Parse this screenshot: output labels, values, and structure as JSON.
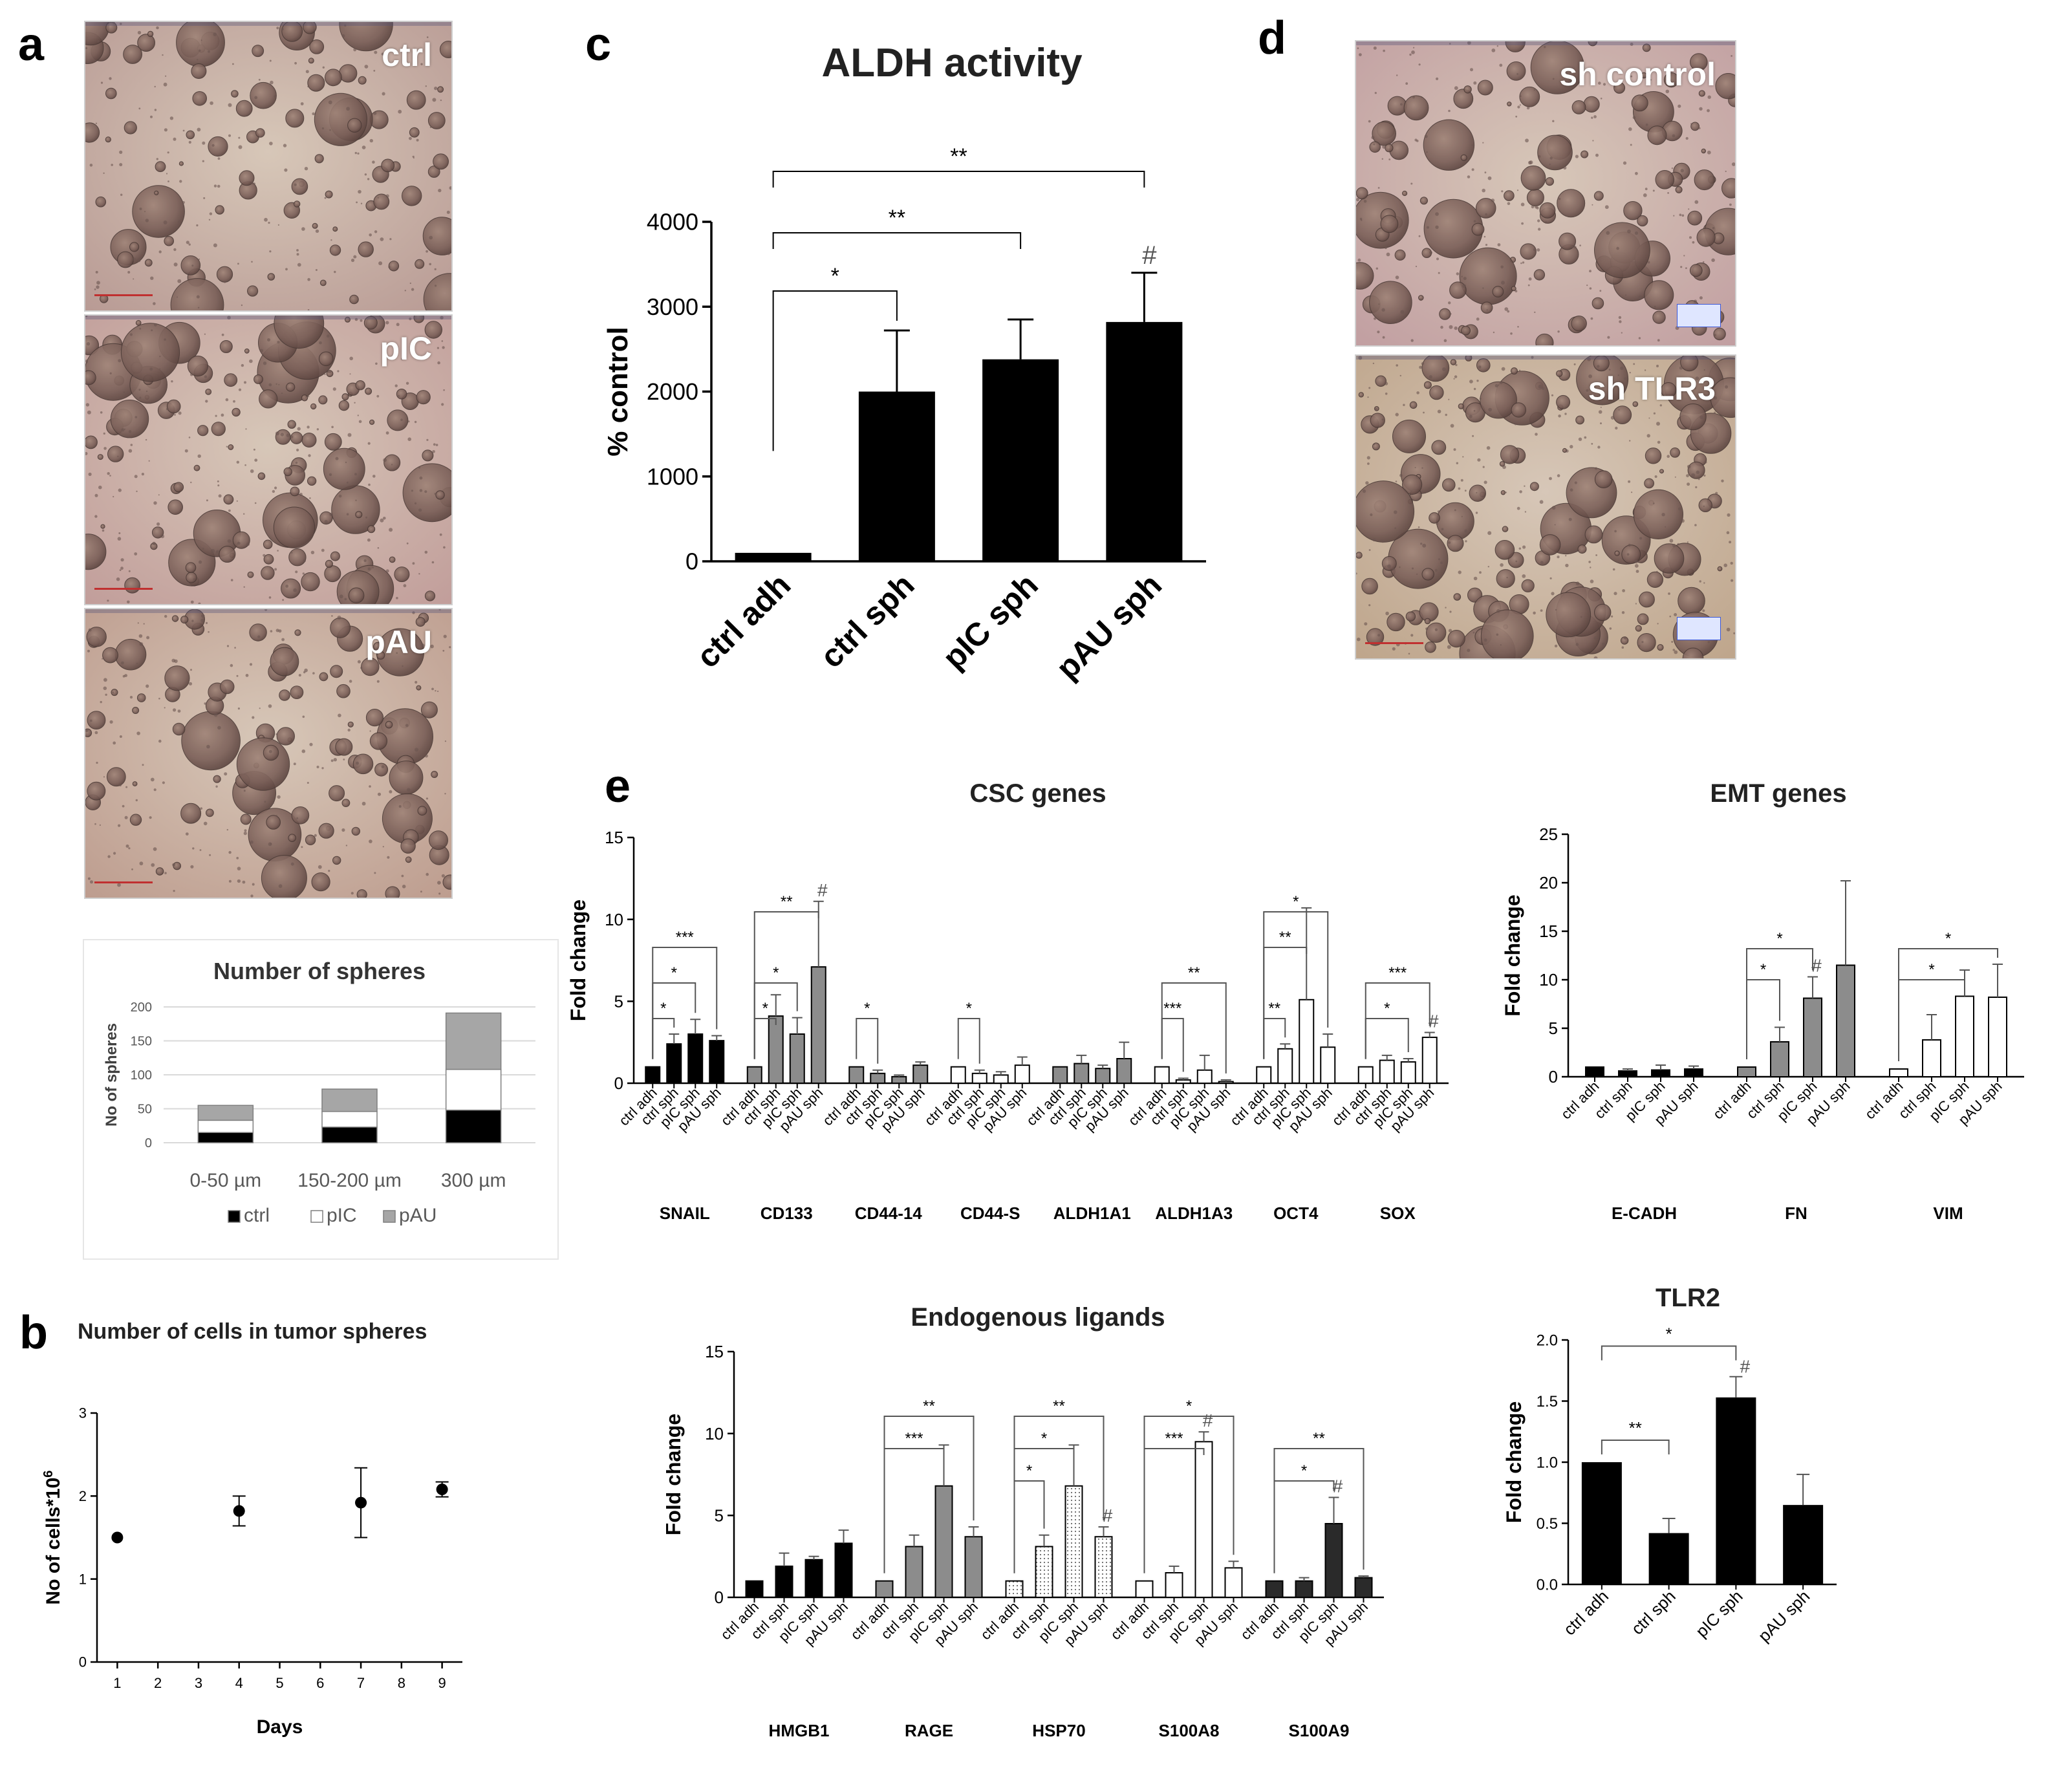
{
  "panels": {
    "a": "a",
    "b": "b",
    "c": "c",
    "d": "d",
    "e": "e"
  },
  "microscopy": {
    "a": [
      {
        "label": "ctrl",
        "tint": "#b89a94"
      },
      {
        "label": "pIC",
        "tint": "#c19d9a"
      },
      {
        "label": "pAU",
        "tint": "#bd9c8e"
      }
    ],
    "d": [
      {
        "label": "sh control",
        "tint": "#c19ea1"
      },
      {
        "label": "sh TLR3",
        "tint": "#bea58b"
      }
    ]
  },
  "colors": {
    "black": "#000000",
    "gray": "#8c8c8c",
    "white": "#ffffff",
    "excel_gray": "#9e9e9e",
    "axis": "#000000"
  },
  "chart_data": [
    {
      "id": "spheres",
      "type": "bar",
      "stacked": true,
      "title": "Number of spheres",
      "ylabel": "No of spheres",
      "ylim": [
        0,
        200
      ],
      "yticks": [
        "0",
        "50",
        "100",
        "150",
        "200"
      ],
      "categories": [
        "0-50 µm",
        "150-200 µm",
        "300 µm"
      ],
      "legend_position": "bottom",
      "grid": true,
      "series": [
        {
          "name": "ctrl",
          "color": "#000000",
          "values": [
            15,
            23,
            48
          ]
        },
        {
          "name": "pIC",
          "color": "#ffffff",
          "values": [
            18,
            23,
            60
          ]
        },
        {
          "name": "pAU",
          "color": "#a6a6a6",
          "values": [
            22,
            33,
            83
          ]
        }
      ]
    },
    {
      "id": "cells",
      "type": "scatter",
      "title": "Number of cells in tumor spheres",
      "xlabel": "Days",
      "ylabel": "No of cells*10",
      "ylabel_sup": "6",
      "xlim": [
        0.5,
        9.5
      ],
      "ylim": [
        0,
        3
      ],
      "xticks": [
        "1",
        "2",
        "3",
        "4",
        "5",
        "6",
        "7",
        "8",
        "9"
      ],
      "yticks": [
        "0",
        "1",
        "2",
        "3"
      ],
      "x": [
        1,
        4,
        7,
        9
      ],
      "y": [
        1.5,
        1.82,
        1.92,
        2.08
      ],
      "err": [
        0.0,
        0.18,
        0.42,
        0.09
      ]
    },
    {
      "id": "aldh",
      "type": "bar",
      "title": "ALDH activity",
      "ylabel": "% control",
      "ylim": [
        0,
        4000
      ],
      "yticks": [
        "0",
        "1000",
        "2000",
        "3000",
        "4000"
      ],
      "categories": [
        "ctrl adh",
        "ctrl sph",
        "pIC sph",
        "pAU sph"
      ],
      "values": [
        100,
        2000,
        2380,
        2820
      ],
      "err": [
        0,
        720,
        470,
        580
      ],
      "color": "#000000",
      "annotations": [
        {
          "text": "*",
          "from": 0,
          "to": 1
        },
        {
          "text": "**",
          "from": 0,
          "to": 2
        },
        {
          "text": "**",
          "from": 0,
          "to": 3
        }
      ],
      "hash_on": [
        3
      ],
      "hash": "#"
    },
    {
      "id": "csc",
      "type": "bar",
      "title": "CSC genes",
      "ylabel": "Fold change",
      "ylim": [
        0,
        15
      ],
      "yticks": [
        "0",
        "5",
        "10",
        "15"
      ],
      "subcategories": [
        "ctrl adh",
        "ctrl sph",
        "pIC sph",
        "pAU sph"
      ],
      "groups": [
        {
          "name": "SNAIL",
          "fill": "#000000",
          "values": [
            1,
            2.4,
            3.0,
            2.6
          ],
          "err": [
            0,
            0.6,
            0.9,
            0.3
          ]
        },
        {
          "name": "CD133",
          "fill": "#8c8c8c",
          "values": [
            1,
            4.1,
            3.0,
            7.1
          ],
          "err": [
            0,
            1.3,
            1.0,
            4.0
          ]
        },
        {
          "name": "CD44-14",
          "fill": "#8c8c8c",
          "values": [
            1,
            0.6,
            0.4,
            1.1
          ],
          "err": [
            0,
            0.2,
            0.1,
            0.2
          ]
        },
        {
          "name": "CD44-S",
          "fill": "#ffffff",
          "values": [
            1,
            0.6,
            0.5,
            1.1
          ],
          "err": [
            0,
            0.2,
            0.2,
            0.5
          ]
        },
        {
          "name": "ALDH1A1",
          "fill": "#8c8c8c",
          "values": [
            1,
            1.2,
            0.9,
            1.5
          ],
          "err": [
            0,
            0.5,
            0.2,
            1.0
          ]
        },
        {
          "name": "ALDH1A3",
          "fill": "#ffffff",
          "values": [
            1,
            0.2,
            0.8,
            0.1
          ],
          "err": [
            0,
            0.1,
            0.9,
            0.1
          ]
        },
        {
          "name": "OCT4",
          "fill": "#ffffff",
          "values": [
            1,
            2.1,
            5.1,
            2.2
          ],
          "err": [
            0,
            0.3,
            5.6,
            0.8
          ]
        },
        {
          "name": "SOX",
          "fill": "#ffffff",
          "values": [
            1,
            1.4,
            1.3,
            2.8
          ],
          "err": [
            0,
            0.3,
            0.2,
            0.3
          ]
        }
      ],
      "annotations": [
        {
          "group": 0,
          "from": 0,
          "to": 1,
          "text": "*",
          "level": 0
        },
        {
          "group": 0,
          "from": 0,
          "to": 2,
          "text": "*",
          "level": 1
        },
        {
          "group": 0,
          "from": 0,
          "to": 3,
          "text": "***",
          "level": 2
        },
        {
          "group": 1,
          "from": 0,
          "to": 1,
          "text": "*",
          "level": 0
        },
        {
          "group": 1,
          "from": 0,
          "to": 2,
          "text": "*",
          "level": 1
        },
        {
          "group": 1,
          "from": 0,
          "to": 3,
          "text": "**",
          "level": 3
        },
        {
          "group": 2,
          "from": 0,
          "to": 1,
          "text": "*",
          "level": 0
        },
        {
          "group": 3,
          "from": 0,
          "to": 1,
          "text": "*",
          "level": 0
        },
        {
          "group": 5,
          "from": 0,
          "to": 1,
          "text": "***",
          "level": 0
        },
        {
          "group": 5,
          "from": 0,
          "to": 3,
          "text": "**",
          "level": 1
        },
        {
          "group": 6,
          "from": 0,
          "to": 1,
          "text": "**",
          "level": 0
        },
        {
          "group": 6,
          "from": 0,
          "to": 2,
          "text": "**",
          "level": 2
        },
        {
          "group": 6,
          "from": 0,
          "to": 3,
          "text": "*",
          "level": 3
        },
        {
          "group": 7,
          "from": 0,
          "to": 2,
          "text": "*",
          "level": 0
        },
        {
          "group": 7,
          "from": 0,
          "to": 3,
          "text": "***",
          "level": 1
        }
      ],
      "hashes": [
        {
          "group": 1,
          "bar": 3
        },
        {
          "group": 7,
          "bar": 3
        }
      ],
      "hash": "#"
    },
    {
      "id": "emt",
      "type": "bar",
      "title": "EMT genes",
      "ylabel": "Fold change",
      "ylim": [
        0,
        25
      ],
      "yticks": [
        "0",
        "5",
        "10",
        "15",
        "20",
        "25"
      ],
      "subcategories": [
        "ctrl adh",
        "ctrl sph",
        "pIC sph",
        "pAU sph"
      ],
      "groups": [
        {
          "name": "E-CADH",
          "fill": "#000000",
          "values": [
            1,
            0.6,
            0.7,
            0.8
          ],
          "err": [
            0,
            0.2,
            0.5,
            0.3
          ]
        },
        {
          "name": "FN",
          "fill": "#8c8c8c",
          "values": [
            1,
            3.6,
            8.1,
            11.5
          ],
          "err": [
            0,
            1.5,
            2.2,
            8.7
          ]
        },
        {
          "name": "VIM",
          "fill": "#ffffff",
          "values": [
            0.8,
            3.8,
            8.3,
            8.2
          ],
          "err": [
            0,
            2.6,
            2.7,
            3.4
          ]
        }
      ],
      "annotations": [
        {
          "group": 1,
          "from": 0,
          "to": 1,
          "text": "*",
          "level": 0
        },
        {
          "group": 1,
          "from": 0,
          "to": 2,
          "text": "*",
          "level": 1
        },
        {
          "group": 2,
          "from": 0,
          "to": 2,
          "text": "*",
          "level": 0
        },
        {
          "group": 2,
          "from": 0,
          "to": 3,
          "text": "*",
          "level": 1
        }
      ],
      "hashes": [
        {
          "group": 1,
          "bar": 2
        }
      ],
      "hash": "#"
    },
    {
      "id": "ligands",
      "type": "bar",
      "title": "Endogenous ligands",
      "ylabel": "Fold change",
      "ylim": [
        0,
        15
      ],
      "yticks": [
        "0",
        "5",
        "10",
        "15"
      ],
      "subcategories": [
        "ctrl adh",
        "ctrl sph",
        "pIC sph",
        "pAU sph"
      ],
      "groups": [
        {
          "name": "HMGB1",
          "fill": "#000000",
          "values": [
            1,
            1.9,
            2.3,
            3.3
          ],
          "err": [
            0,
            0.8,
            0.2,
            0.8
          ]
        },
        {
          "name": "RAGE",
          "fill": "#8c8c8c",
          "values": [
            1,
            3.1,
            6.8,
            3.7
          ],
          "err": [
            0,
            0.7,
            2.5,
            0.6
          ]
        },
        {
          "name": "HSP70",
          "fill": "dots",
          "values": [
            1,
            3.1,
            6.8,
            3.7
          ],
          "err": [
            0,
            0.7,
            2.5,
            0.6
          ]
        },
        {
          "name": "S100A8",
          "fill": "#ffffff",
          "values": [
            1,
            1.5,
            9.5,
            1.8
          ],
          "err": [
            0,
            0.4,
            0.6,
            0.4
          ]
        },
        {
          "name": "S100A9",
          "fill": "#2a2a2a",
          "values": [
            1,
            1.0,
            4.5,
            1.2
          ],
          "err": [
            0,
            0.2,
            1.6,
            0.1
          ]
        }
      ],
      "annotations": [
        {
          "group": 1,
          "from": 0,
          "to": 2,
          "text": "***",
          "level": 1
        },
        {
          "group": 1,
          "from": 0,
          "to": 3,
          "text": "**",
          "level": 2
        },
        {
          "group": 2,
          "from": 0,
          "to": 1,
          "text": "*",
          "level": 0
        },
        {
          "group": 2,
          "from": 0,
          "to": 2,
          "text": "*",
          "level": 1
        },
        {
          "group": 2,
          "from": 0,
          "to": 3,
          "text": "**",
          "level": 2
        },
        {
          "group": 3,
          "from": 0,
          "to": 2,
          "text": "***",
          "level": 1
        },
        {
          "group": 3,
          "from": 0,
          "to": 3,
          "text": "*",
          "level": 2
        },
        {
          "group": 4,
          "from": 0,
          "to": 2,
          "text": "*",
          "level": 0
        },
        {
          "group": 4,
          "from": 0,
          "to": 3,
          "text": "**",
          "level": 1
        }
      ],
      "hashes": [
        {
          "group": 2,
          "bar": 3
        },
        {
          "group": 3,
          "bar": 2
        },
        {
          "group": 4,
          "bar": 2
        }
      ],
      "hash": "#"
    },
    {
      "id": "tlr2",
      "type": "bar",
      "title": "TLR2",
      "ylabel": "Fold change",
      "ylim": [
        0,
        2.0
      ],
      "yticks": [
        "0.0",
        "0.5",
        "1.0",
        "1.5",
        "2.0"
      ],
      "categories": [
        "ctrl adh",
        "ctrl sph",
        "pIC sph",
        "pAU sph"
      ],
      "values": [
        1.0,
        0.42,
        1.53,
        0.65
      ],
      "err": [
        0,
        0.12,
        0.17,
        0.25
      ],
      "color": "#000000",
      "annotations": [
        {
          "text": "**",
          "from": 0,
          "to": 1,
          "level": 0
        },
        {
          "text": "*",
          "from": 0,
          "to": 2,
          "level": 1
        }
      ],
      "hash_on": [
        2
      ],
      "hash": "#"
    }
  ]
}
